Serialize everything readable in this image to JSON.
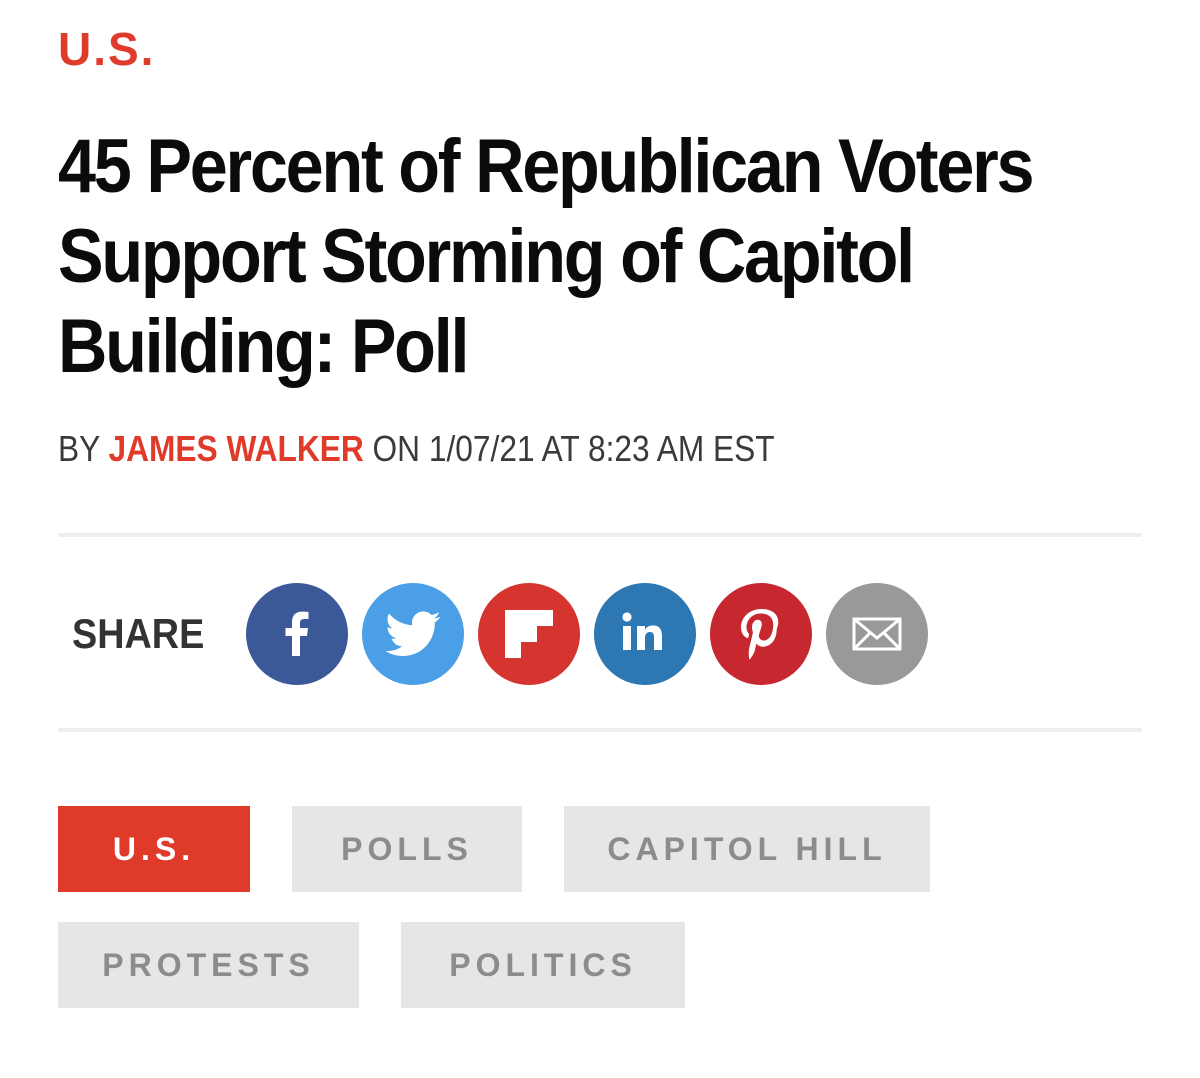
{
  "article": {
    "section": "U.S.",
    "headline": "45 Percent of Republican Voters Support Storming of Capitol Building: Poll",
    "byline": {
      "prefix": "BY",
      "author": "JAMES WALKER",
      "date_text": "ON 1/07/21 AT 8:23 AM EST"
    }
  },
  "share": {
    "label": "SHARE",
    "buttons": [
      {
        "icon": "facebook-icon",
        "color": "#3b5998"
      },
      {
        "icon": "twitter-icon",
        "color": "#4a9fe6"
      },
      {
        "icon": "flipboard-icon",
        "color": "#d5342f"
      },
      {
        "icon": "linkedin-icon",
        "color": "#2d77b3"
      },
      {
        "icon": "pinterest-icon",
        "color": "#c7282f"
      },
      {
        "icon": "email-icon",
        "color": "#999999"
      }
    ]
  },
  "tags": [
    {
      "label": "U.S.",
      "active": true
    },
    {
      "label": "POLLS",
      "active": false
    },
    {
      "label": "CAPITOL HILL",
      "active": false
    },
    {
      "label": "PROTESTS",
      "active": false
    },
    {
      "label": "POLITICS",
      "active": false
    }
  ],
  "colors": {
    "accent": "#e03a2a",
    "tag_bg": "#e6e6e6",
    "tag_text": "#8c8c8c"
  }
}
